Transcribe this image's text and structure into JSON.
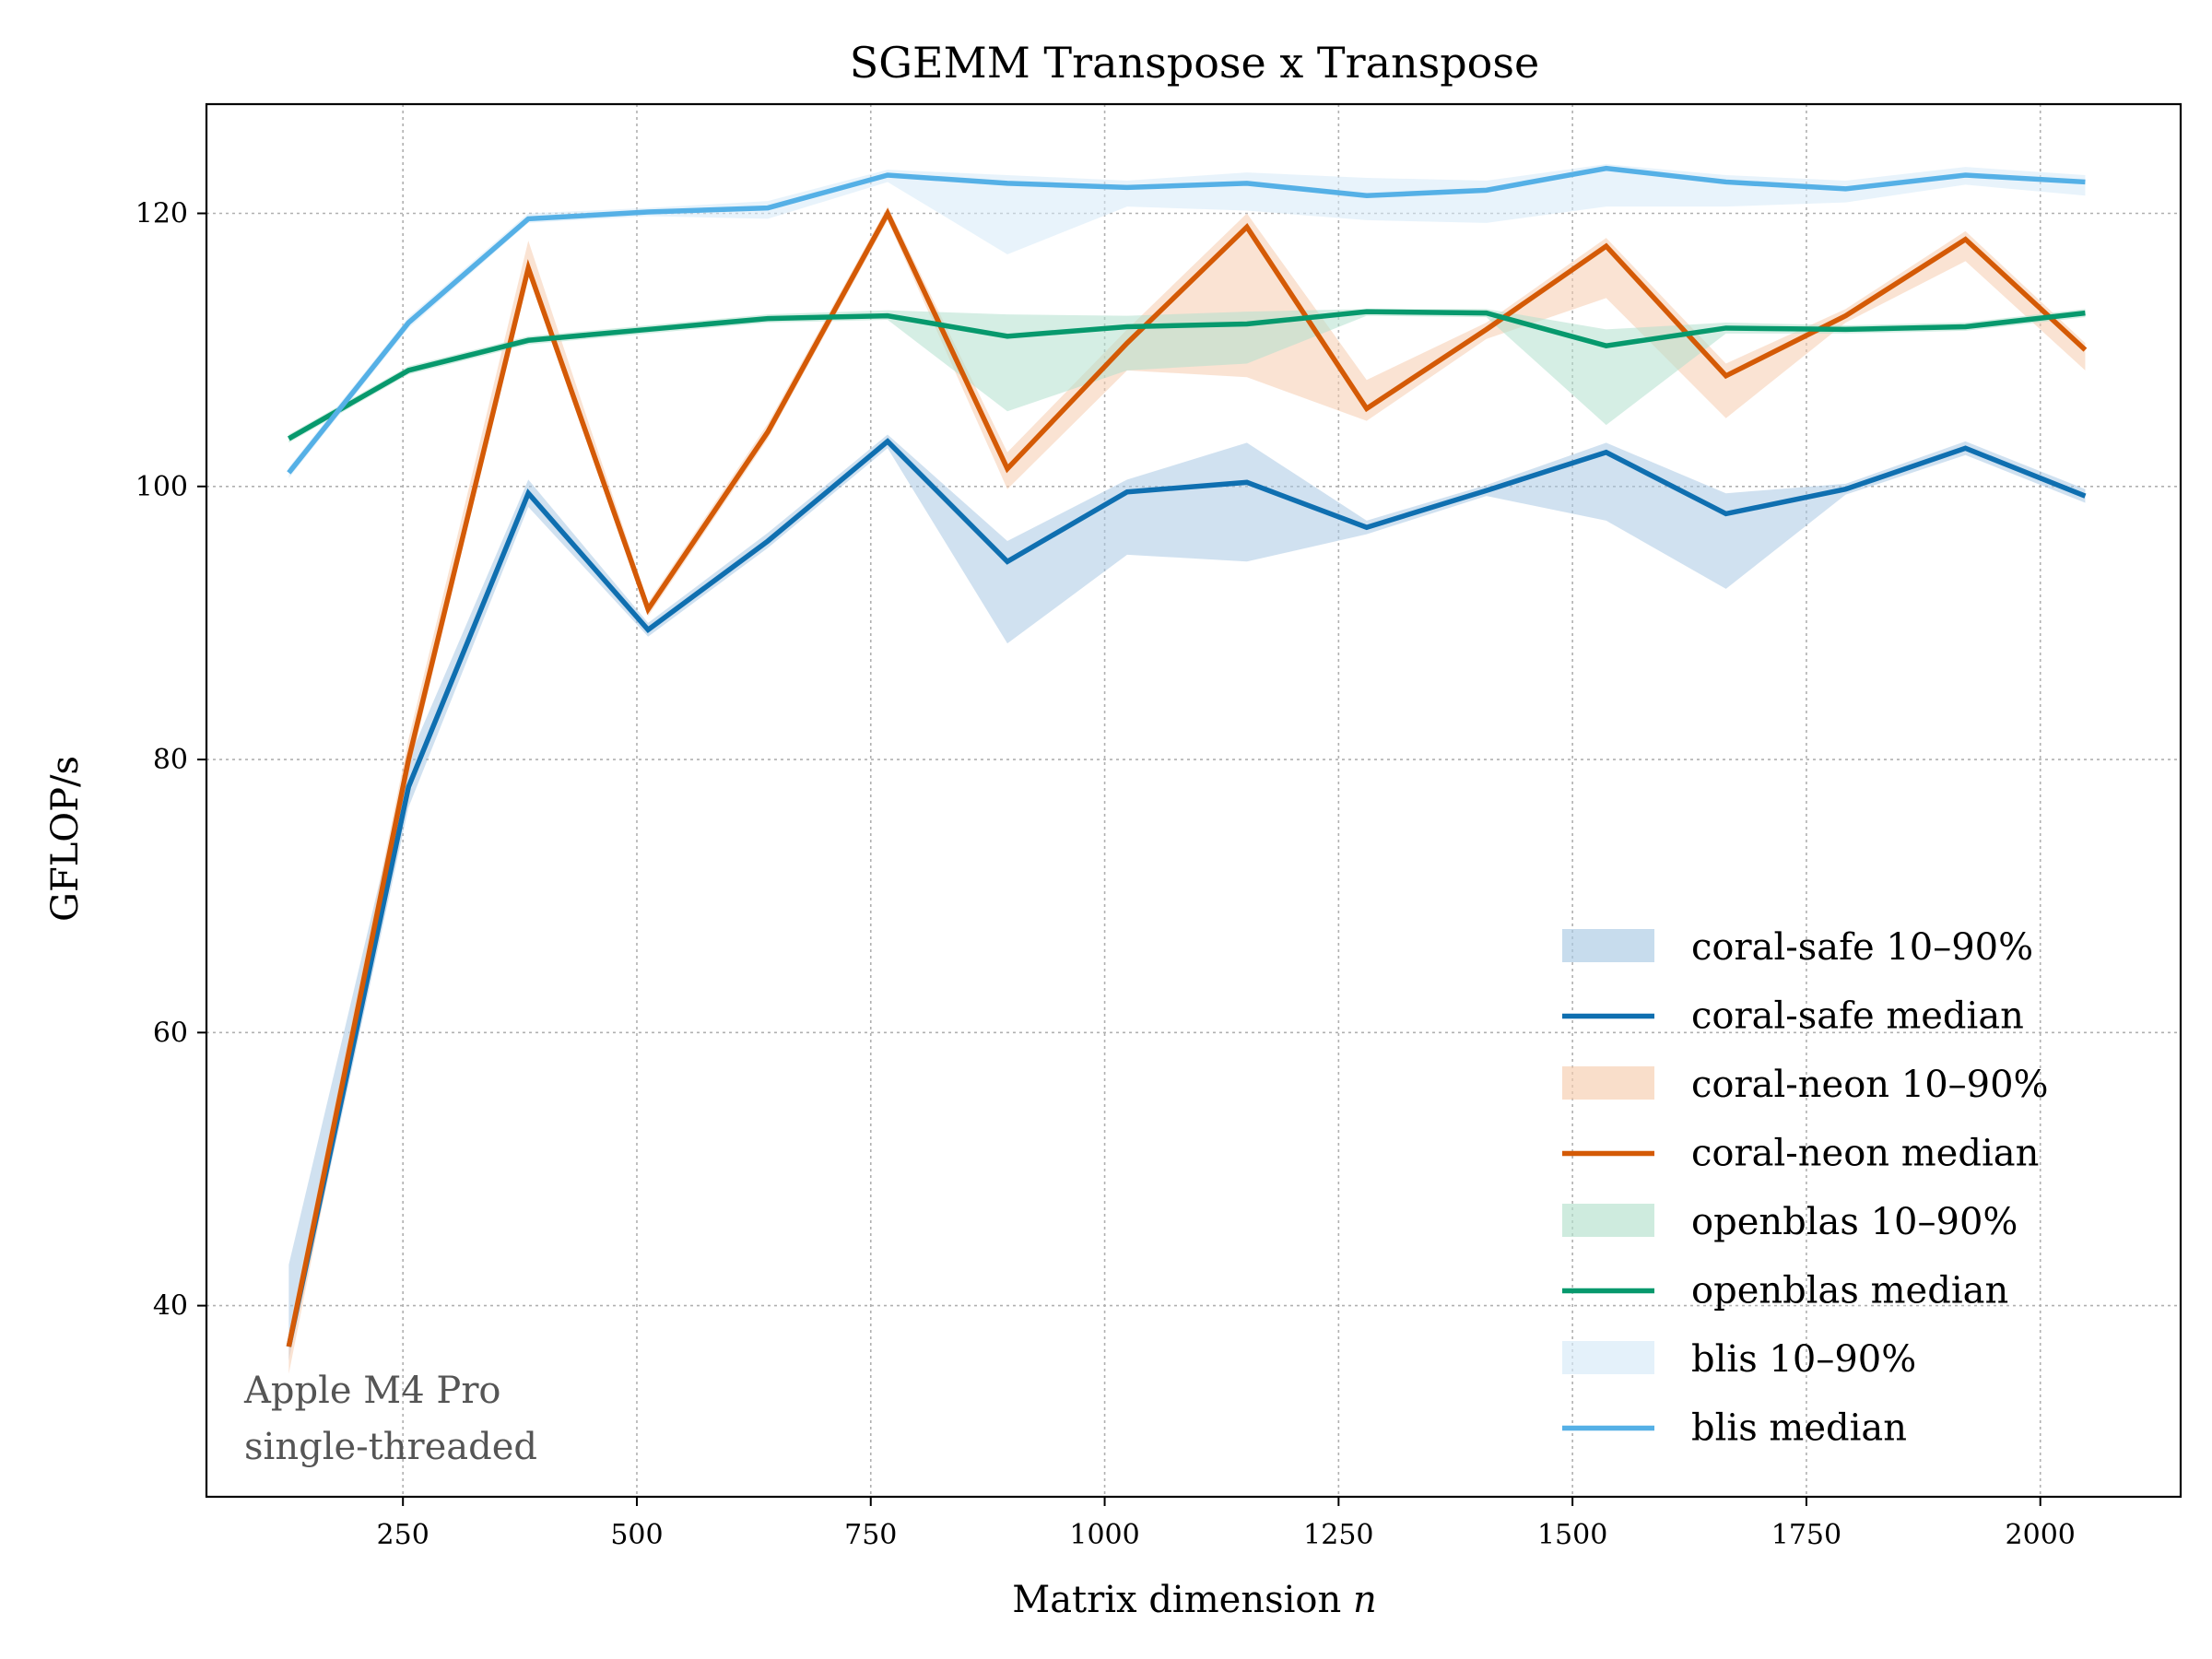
{
  "chart_data": {
    "type": "line",
    "title": "SGEMM  Transpose x Transpose",
    "xlabel": "Matrix dimension",
    "xlabel_var": "n",
    "ylabel": "GFLOP/s",
    "xlim": [
      40,
      2150
    ],
    "ylim": [
      26,
      128
    ],
    "xticks": [
      250,
      500,
      750,
      1000,
      1250,
      1500,
      1750,
      2000
    ],
    "yticks": [
      40,
      60,
      80,
      100,
      120
    ],
    "grid": true,
    "legend_position": "lower-right",
    "annotation": [
      "Apple M4 Pro",
      "single-threaded"
    ],
    "x": [
      128,
      256,
      384,
      512,
      640,
      768,
      896,
      1024,
      1152,
      1280,
      1408,
      1536,
      1664,
      1792,
      1920,
      2048
    ],
    "series": [
      {
        "name": "coral-safe median",
        "band_name": "coral-safe 10–90%",
        "color": "#0f6fb0",
        "band_color": "#a9c9e3",
        "median": [
          37,
          78,
          99.5,
          89.5,
          96,
          103.3,
          94.5,
          99.6,
          100.3,
          97,
          99.7,
          102.5,
          98,
          99.8,
          102.8,
          99.3
        ],
        "p10": [
          36,
          76.5,
          98.5,
          89,
          95.5,
          102.8,
          88.5,
          95,
          94.5,
          96.5,
          99.3,
          97.5,
          92.5,
          99.4,
          102.3,
          98.8
        ],
        "p90": [
          43,
          80,
          100.5,
          90,
          96.6,
          103.8,
          96,
          100.5,
          103.2,
          97.5,
          100.1,
          103.2,
          99.5,
          100.2,
          103.3,
          99.8
        ]
      },
      {
        "name": "coral-neon median",
        "band_name": "coral-neon 10–90%",
        "color": "#d45a06",
        "band_color": "#f6ccae",
        "median": [
          37,
          80,
          116,
          91,
          104,
          120,
          101.3,
          110.5,
          119,
          105.7,
          111.5,
          117.6,
          108.1,
          112.5,
          118.1,
          110
        ],
        "p10": [
          35,
          79,
          115.5,
          90.5,
          103.5,
          119.5,
          99.8,
          108.5,
          108,
          104.8,
          110.8,
          113.8,
          105,
          112,
          116.5,
          108.5
        ],
        "p90": [
          38,
          81.5,
          118,
          91.5,
          104.6,
          120.5,
          102.5,
          111.5,
          120,
          107.8,
          112,
          118.2,
          109,
          113,
          118.7,
          110.5
        ]
      },
      {
        "name": "openblas median",
        "band_name": "openblas 10–90%",
        "color": "#07996d",
        "band_color": "#b3e0cd",
        "median": [
          103.5,
          108.5,
          110.7,
          111.5,
          112.3,
          112.5,
          111,
          111.7,
          111.9,
          112.8,
          112.7,
          110.3,
          111.6,
          111.5,
          111.7,
          112.7
        ],
        "p10": [
          103.2,
          108.2,
          110.4,
          111.2,
          112,
          112.2,
          105.5,
          108.5,
          109,
          112.5,
          112.4,
          104.5,
          111.2,
          111.2,
          111.4,
          112.4
        ],
        "p90": [
          103.8,
          108.8,
          111,
          111.8,
          112.6,
          112.9,
          112.6,
          112.5,
          112.8,
          113,
          113,
          111.5,
          112,
          111.8,
          112,
          113
        ]
      },
      {
        "name": "blis median",
        "band_name": "blis 10–90%",
        "color": "#55b0e6",
        "band_color": "#d6eaf8",
        "median": [
          101,
          112,
          119.6,
          120.1,
          120.4,
          122.8,
          122.2,
          121.9,
          122.2,
          121.3,
          121.7,
          123.3,
          122.3,
          121.8,
          122.8,
          122.3
        ],
        "p10": [
          100.6,
          111.6,
          119.3,
          119.8,
          119.6,
          122.3,
          117,
          120.5,
          120.2,
          119.5,
          119.3,
          120.5,
          120.5,
          120.8,
          122.1,
          121.3
        ],
        "p90": [
          101.4,
          112.4,
          120,
          120.4,
          120.9,
          123.2,
          122.8,
          122.4,
          123,
          122.6,
          122.4,
          123.6,
          122.8,
          122.4,
          123.4,
          122.8
        ]
      }
    ]
  }
}
